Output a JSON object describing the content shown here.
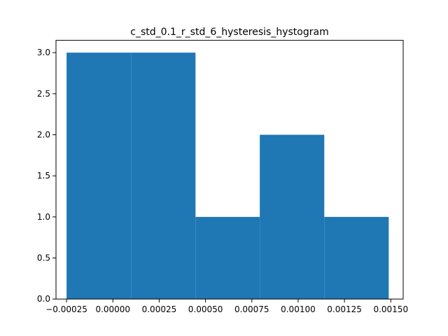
{
  "chart_data": {
    "type": "bar",
    "title": "c_std_0.1_r_std_6_hysteresis_hystogram",
    "xlabel": "",
    "ylabel": "",
    "xlim": [
      -0.000307,
      0.001567
    ],
    "ylim": [
      0,
      3.15
    ],
    "bar_color": "#1f77b4",
    "bins": [
      {
        "x0": -0.00025,
        "x1": 9.8e-05,
        "count": 3
      },
      {
        "x0": 9.8e-05,
        "x1": 0.000446,
        "count": 3
      },
      {
        "x0": 0.000446,
        "x1": 0.000793,
        "count": 1
      },
      {
        "x0": 0.000793,
        "x1": 0.001141,
        "count": 2
      },
      {
        "x0": 0.001141,
        "x1": 0.001489,
        "count": 1
      }
    ],
    "x_ticks": [
      {
        "value": -0.00025,
        "label": "−0.00025"
      },
      {
        "value": 0.0,
        "label": "0.00000"
      },
      {
        "value": 0.00025,
        "label": "0.00025"
      },
      {
        "value": 0.0005,
        "label": "0.00050"
      },
      {
        "value": 0.00075,
        "label": "0.00075"
      },
      {
        "value": 0.001,
        "label": "0.00100"
      },
      {
        "value": 0.00125,
        "label": "0.00125"
      },
      {
        "value": 0.0015,
        "label": "0.00150"
      }
    ],
    "y_ticks": [
      {
        "value": 0.0,
        "label": "0.0"
      },
      {
        "value": 0.5,
        "label": "0.5"
      },
      {
        "value": 1.0,
        "label": "1.0"
      },
      {
        "value": 1.5,
        "label": "1.5"
      },
      {
        "value": 2.0,
        "label": "2.0"
      },
      {
        "value": 2.5,
        "label": "2.5"
      },
      {
        "value": 3.0,
        "label": "3.0"
      }
    ],
    "grid": false
  }
}
